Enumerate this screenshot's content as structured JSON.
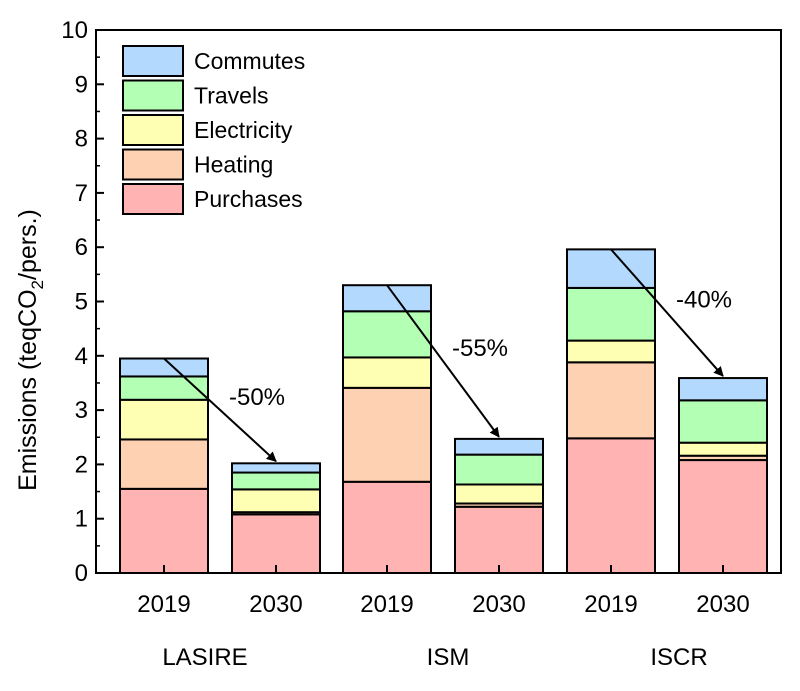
{
  "chart_data": {
    "type": "bar",
    "stacked": true,
    "ylabel": {
      "prefix": "Emissions (teqCO",
      "subscript": "2",
      "suffix": "/pers.)"
    },
    "xlabel": "",
    "ylim": [
      0,
      10
    ],
    "yticks": [
      0,
      1,
      2,
      3,
      4,
      5,
      6,
      7,
      8,
      9,
      10
    ],
    "grid": false,
    "legend_position": "top-left",
    "categories": [
      "2019",
      "2030",
      "2019",
      "2030",
      "2019",
      "2030"
    ],
    "groups": [
      {
        "label": "LASIRE",
        "categories": [
          0,
          1
        ]
      },
      {
        "label": "ISM",
        "categories": [
          2,
          3
        ]
      },
      {
        "label": "ISCR",
        "categories": [
          4,
          5
        ]
      }
    ],
    "series": [
      {
        "name": "Purchases",
        "color": "#ffb3b3",
        "values": [
          1.55,
          1.08,
          1.68,
          1.22,
          2.48,
          2.08
        ]
      },
      {
        "name": "Heating",
        "color": "#ffd1b3",
        "values": [
          0.91,
          0.04,
          1.73,
          0.06,
          1.4,
          0.08
        ]
      },
      {
        "name": "Electricity",
        "color": "#ffffb3",
        "values": [
          0.73,
          0.42,
          0.56,
          0.35,
          0.4,
          0.24
        ]
      },
      {
        "name": "Travels",
        "color": "#b3ffb3",
        "values": [
          0.43,
          0.31,
          0.85,
          0.55,
          0.97,
          0.78
        ]
      },
      {
        "name": "Commutes",
        "color": "#b3d9ff",
        "values": [
          0.33,
          0.17,
          0.48,
          0.29,
          0.71,
          0.41
        ]
      }
    ],
    "annotations": [
      {
        "text": "-50%",
        "from_category": 0,
        "to_category": 1
      },
      {
        "text": "-55%",
        "from_category": 2,
        "to_category": 3
      },
      {
        "text": "-40%",
        "from_category": 4,
        "to_category": 5
      }
    ]
  }
}
